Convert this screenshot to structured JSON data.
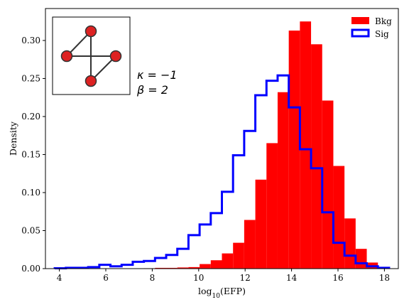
{
  "chart_data": {
    "type": "histogram",
    "xlabel": "log",
    "xlabel_sub": "10",
    "xlabel_suffix": "(EFP)",
    "ylabel": "Density",
    "xlim": [
      3.4,
      18.6
    ],
    "ylim": [
      0,
      0.342
    ],
    "xticks": [
      4,
      6,
      8,
      10,
      12,
      14,
      16,
      18
    ],
    "yticks": [
      0.0,
      0.05,
      0.1,
      0.15,
      0.2,
      0.25,
      0.3
    ],
    "ytick_labels": [
      "0.00",
      "0.05",
      "0.10",
      "0.15",
      "0.20",
      "0.25",
      "0.30"
    ],
    "bin_edges": [
      3.8,
      4.28,
      4.76,
      5.24,
      5.72,
      6.2,
      6.68,
      7.16,
      7.64,
      8.12,
      8.6,
      9.08,
      9.56,
      10.04,
      10.52,
      11.0,
      11.48,
      11.96,
      12.44,
      12.92,
      13.4,
      13.88,
      14.36,
      14.84,
      15.32,
      15.8,
      16.28,
      16.76,
      17.24,
      17.72,
      18.2
    ],
    "series": [
      {
        "name": "Bkg",
        "style": "filled",
        "color": "#ff0000",
        "values": [
          0,
          0,
          0,
          0,
          0,
          0,
          0,
          0,
          0.0005,
          0.001,
          0.001,
          0.0015,
          0.002,
          0.006,
          0.011,
          0.02,
          0.034,
          0.064,
          0.117,
          0.165,
          0.232,
          0.313,
          0.325,
          0.295,
          0.221,
          0.135,
          0.066,
          0.026,
          0.008,
          0.002
        ]
      },
      {
        "name": "Sig",
        "style": "step",
        "color": "#0000ff",
        "values": [
          0.0005,
          0.001,
          0.001,
          0.002,
          0.005,
          0.003,
          0.005,
          0.009,
          0.01,
          0.014,
          0.018,
          0.026,
          0.044,
          0.058,
          0.073,
          0.101,
          0.149,
          0.181,
          0.228,
          0.247,
          0.254,
          0.212,
          0.157,
          0.132,
          0.074,
          0.034,
          0.017,
          0.007,
          0.003,
          0.001
        ]
      }
    ],
    "legend": {
      "placement": "top-right"
    },
    "annotations": {
      "kappa_text": "κ = −1",
      "beta_text": "β = 2"
    },
    "inset": {
      "description": "graph",
      "node_color": "#dd2222",
      "edge_color": "#333333"
    }
  }
}
